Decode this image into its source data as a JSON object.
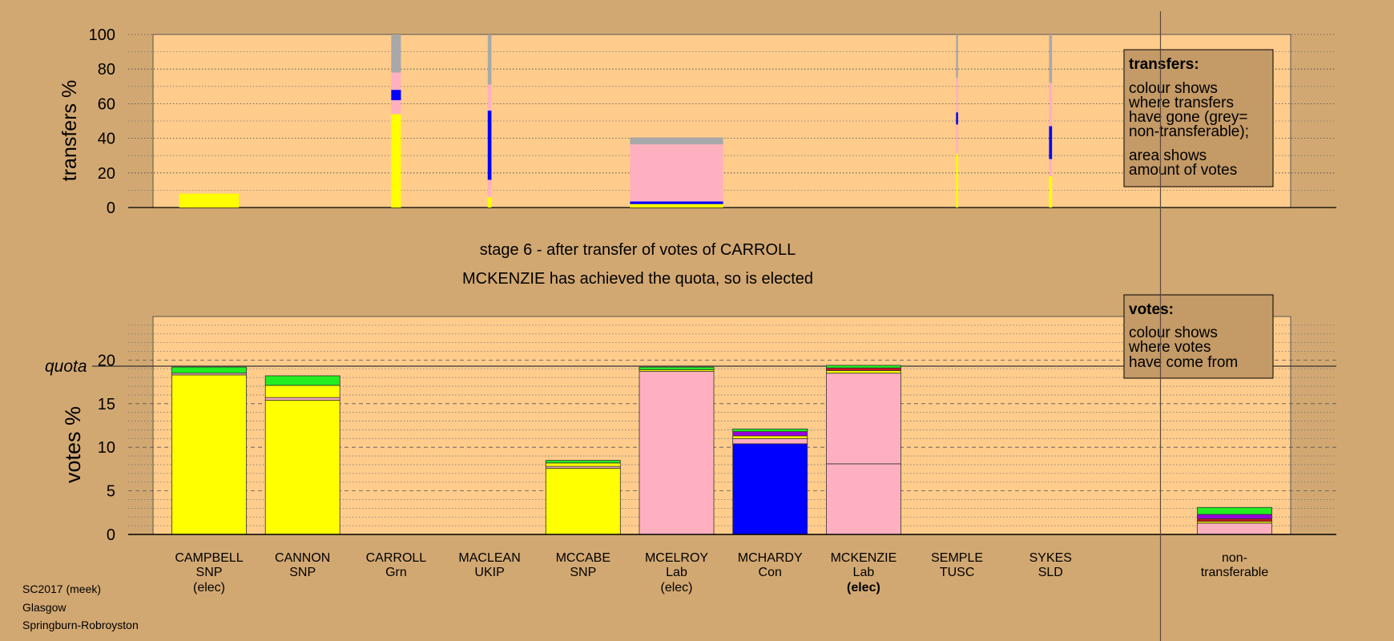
{
  "stage_title": "stage 6 - after transfer of votes of CARROLL",
  "stage_subtitle": "MCKENZIE has achieved the quota, so is elected",
  "footer": {
    "line1": "SC2017 (meek)",
    "line2": "Glasgow",
    "line3": "Springburn-Robroyston"
  },
  "colors": {
    "background": "#D2A872",
    "plot_bg": "#FFCC8C",
    "SNP": "#FFFF00",
    "Lab": "#FFB0C0",
    "Con": "#0000FF",
    "Grn": "#22EE22",
    "SLD": "#9900DD",
    "UKIP": "#8800AA",
    "TUSC": "#CC1122",
    "nontransferable": "#A8A8A8"
  },
  "legends": {
    "transfers": {
      "title": "transfers:",
      "lines": [
        "colour shows",
        "where transfers",
        "have gone (grey=",
        "non-transferable);"
      ],
      "lines2": [
        "area shows",
        "amount of votes"
      ]
    },
    "votes": {
      "title": "votes:",
      "lines": [
        "colour shows",
        "where votes",
        "have come from"
      ]
    }
  },
  "chart_data": [
    {
      "type": "bar",
      "ylabel": "transfers %",
      "ylim": [
        0,
        100
      ],
      "yticks": [
        0,
        20,
        40,
        60,
        80,
        100
      ],
      "note": "stacked transfer bars; bar width proportional to amount of votes transferred",
      "bars": [
        {
          "candidate": "CAMPBELL",
          "width_share": 0.8,
          "segments": [
            {
              "party": "SNP",
              "value": 8
            }
          ]
        },
        {
          "candidate": "CARROLL",
          "width_share": 0.13,
          "segments": [
            {
              "party": "SNP",
              "value": 54
            },
            {
              "party": "Lab",
              "value": 8
            },
            {
              "party": "Con",
              "value": 6
            },
            {
              "party": "Lab",
              "value": 10
            },
            {
              "party": "nontransferable",
              "value": 22
            }
          ]
        },
        {
          "candidate": "MACLEAN",
          "width_share": 0.05,
          "segments": [
            {
              "party": "SNP",
              "value": 6
            },
            {
              "party": "Lab",
              "value": 10
            },
            {
              "party": "Con",
              "value": 40
            },
            {
              "party": "Lab",
              "value": 15
            },
            {
              "party": "nontransferable",
              "value": 29
            }
          ]
        },
        {
          "candidate": "MCELROY",
          "width_share": 1.25,
          "segments": [
            {
              "party": "SNP",
              "value": 2
            },
            {
              "party": "Con",
              "value": 1.5
            },
            {
              "party": "Lab",
              "value": 33
            },
            {
              "party": "nontransferable",
              "value": 4
            }
          ]
        },
        {
          "candidate": "SEMPLE",
          "width_share": 0.02,
          "segments": [
            {
              "party": "SNP",
              "value": 31
            },
            {
              "party": "Lab",
              "value": 17
            },
            {
              "party": "Con",
              "value": 7
            },
            {
              "party": "Lab",
              "value": 20
            },
            {
              "party": "nontransferable",
              "value": 25
            }
          ]
        },
        {
          "candidate": "SYKES",
          "width_share": 0.04,
          "segments": [
            {
              "party": "SNP",
              "value": 18
            },
            {
              "party": "Lab",
              "value": 10
            },
            {
              "party": "Con",
              "value": 19
            },
            {
              "party": "Lab",
              "value": 25
            },
            {
              "party": "nontransferable",
              "value": 28
            }
          ]
        }
      ]
    },
    {
      "type": "bar",
      "ylabel": "votes %",
      "ylim": [
        0,
        25
      ],
      "yticks": [
        0,
        5,
        10,
        15,
        20
      ],
      "quota": 19.3,
      "quota_label": "quota",
      "categories": [
        {
          "name": "CAMPBELL",
          "party": "SNP",
          "status": "(elec)",
          "status_bold": false
        },
        {
          "name": "CANNON",
          "party": "SNP",
          "status": "",
          "status_bold": false
        },
        {
          "name": "CARROLL",
          "party": "Grn",
          "status": "",
          "status_bold": false
        },
        {
          "name": "MACLEAN",
          "party": "UKIP",
          "status": "",
          "status_bold": false
        },
        {
          "name": "MCCABE",
          "party": "SNP",
          "status": "",
          "status_bold": false
        },
        {
          "name": "MCELROY",
          "party": "Lab",
          "status": "(elec)",
          "status_bold": false
        },
        {
          "name": "MCHARDY",
          "party": "Con",
          "status": "",
          "status_bold": false
        },
        {
          "name": "MCKENZIE",
          "party": "Lab",
          "status": "(elec)",
          "status_bold": true
        },
        {
          "name": "SEMPLE",
          "party": "TUSC",
          "status": "",
          "status_bold": false
        },
        {
          "name": "SYKES",
          "party": "SLD",
          "status": "",
          "status_bold": false
        }
      ],
      "nontransferable_label": [
        "non-",
        "transferable"
      ],
      "stacks": [
        [
          {
            "party": "SNP",
            "value": 18.3
          },
          {
            "party": "Lab",
            "value": 0.2
          },
          {
            "party": "Grn",
            "value": 0.7
          }
        ],
        [
          {
            "party": "SNP",
            "value": 15.4
          },
          {
            "party": "Lab",
            "value": 0.3
          },
          {
            "party": "SNP",
            "value": 1.4
          },
          {
            "party": "Grn",
            "value": 1.1
          }
        ],
        [],
        [],
        [
          {
            "party": "SNP",
            "value": 7.6
          },
          {
            "party": "Lab",
            "value": 0.2
          },
          {
            "party": "SNP",
            "value": 0.4
          },
          {
            "party": "Grn",
            "value": 0.3
          }
        ],
        [
          {
            "party": "Lab",
            "value": 18.7
          },
          {
            "party": "SNP",
            "value": 0.2
          },
          {
            "party": "Grn",
            "value": 0.3
          }
        ],
        [
          {
            "party": "Con",
            "value": 10.4
          },
          {
            "party": "Lab",
            "value": 0.6
          },
          {
            "party": "SNP",
            "value": 0.3
          },
          {
            "party": "SLD",
            "value": 0.5
          },
          {
            "party": "Grn",
            "value": 0.3
          }
        ],
        [
          {
            "party": "Lab",
            "value": 8.1
          },
          {
            "party": "Lab",
            "value": 10.4
          },
          {
            "party": "SNP",
            "value": 0.3
          },
          {
            "party": "TUSC",
            "value": 0.3
          },
          {
            "party": "Grn",
            "value": 0.3
          }
        ],
        [],
        []
      ],
      "nontransferable": [
        {
          "party": "Lab",
          "value": 1.3
        },
        {
          "party": "SNP",
          "value": 0.2
        },
        {
          "party": "TUSC",
          "value": 0.3
        },
        {
          "party": "SLD",
          "value": 0.5
        },
        {
          "party": "Grn",
          "value": 0.8
        }
      ]
    }
  ]
}
